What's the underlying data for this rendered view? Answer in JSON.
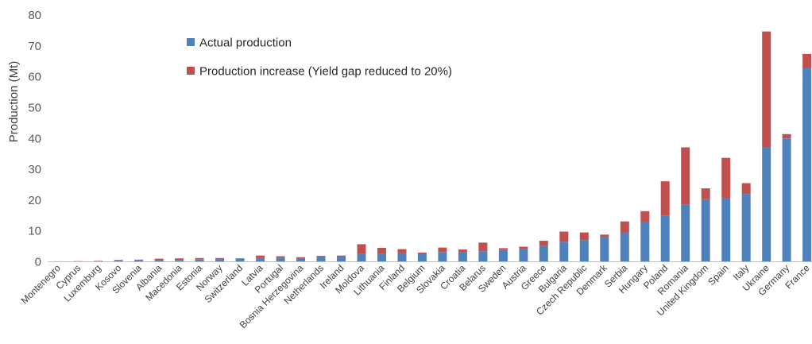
{
  "chart_data": {
    "type": "bar",
    "stacked": true,
    "xlabel": "",
    "ylabel": "Production (Mt)",
    "ylim": [
      0,
      80
    ],
    "yticks": [
      0,
      10,
      20,
      30,
      40,
      50,
      60,
      70,
      80
    ],
    "grid": false,
    "legend_position": "top-left",
    "categories": [
      "Montenegro",
      "Cyprus",
      "Luxemburg",
      "Kosovo",
      "Slovenia",
      "Albania",
      "Macedonia",
      "Estonia",
      "Norway",
      "Switzerland",
      "Latvia",
      "Portugal",
      "Bosnia Herzegovina",
      "Netherlands",
      "Ireland",
      "Moldova",
      "Lithuania",
      "Finland",
      "Belgium",
      "Slovakia",
      "Croatia",
      "Belarus",
      "Sweden",
      "Austria",
      "Greece",
      "Bulgaria",
      "Czech Republic",
      "Denmark",
      "Serbia",
      "Hungary",
      "Poland",
      "Romania",
      "United Kingdom",
      "Spain",
      "Italy",
      "Ukraine",
      "Germany",
      "France"
    ],
    "series": [
      {
        "name": "Actual production",
        "color": "#4f81bd",
        "values": [
          0.05,
          0.1,
          0.15,
          0.3,
          0.5,
          0.5,
          0.6,
          0.7,
          0.8,
          0.9,
          1.2,
          1.3,
          1.2,
          1.8,
          1.8,
          2.5,
          2.5,
          2.8,
          2.7,
          3.0,
          3.2,
          3.4,
          3.8,
          4.2,
          5.2,
          6.5,
          7.0,
          8.0,
          9.5,
          13.0,
          15.0,
          18.5,
          20.3,
          20.5,
          22.0,
          37.0,
          40.0,
          63.0
        ]
      },
      {
        "name": "Production increase (Yield gap reduced to 20%)",
        "color": "#c0504d",
        "values": [
          0.1,
          0.1,
          0.15,
          0.3,
          0.2,
          0.5,
          0.5,
          0.5,
          0.4,
          0.2,
          0.8,
          0.5,
          0.3,
          0.1,
          0.2,
          3.2,
          2.0,
          1.3,
          0.3,
          1.6,
          0.8,
          2.8,
          0.6,
          0.7,
          1.6,
          3.3,
          2.5,
          0.8,
          3.6,
          3.4,
          11.1,
          18.6,
          3.5,
          13.2,
          3.5,
          37.7,
          1.4,
          4.4
        ]
      }
    ]
  }
}
